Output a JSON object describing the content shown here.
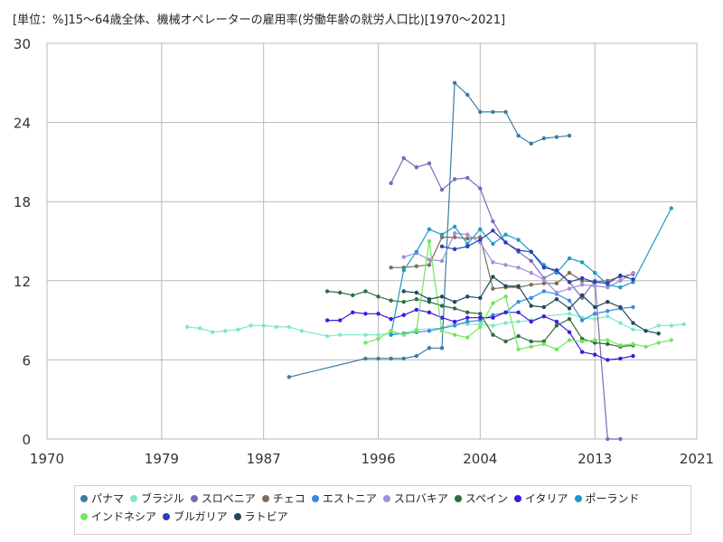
{
  "chart_data": {
    "type": "line",
    "title": "[単位：%]15～64歳全体、機械オペレーターの雇用率(労働年齢の就労人口比)[1970～2021]",
    "xlabel": "",
    "ylabel": "",
    "xlim": [
      1970,
      2021
    ],
    "ylim": [
      0,
      30
    ],
    "xticks": [
      "1970",
      "1979",
      "1987",
      "1996",
      "2004",
      "2013",
      "2021"
    ],
    "yticks": [
      "0",
      "6",
      "12",
      "18",
      "24",
      "30"
    ],
    "grid": true,
    "legend_position": "bottom",
    "series": [
      {
        "name": "パナマ",
        "color": "#3b7ca6",
        "x": [
          1989,
          1995,
          1996,
          1997,
          1998,
          1999,
          2000,
          2001,
          2002,
          2003,
          2004,
          2005,
          2006,
          2007,
          2008,
          2009,
          2010,
          2011
        ],
        "y": [
          4.7,
          6.1,
          6.1,
          6.1,
          6.1,
          6.3,
          6.9,
          6.9,
          27.0,
          26.1,
          24.8,
          24.8,
          24.8,
          23.0,
          22.4,
          22.8,
          22.9,
          23.0
        ]
      },
      {
        "name": "ブラジル",
        "color": "#7fe8c6",
        "x": [
          1981,
          1982,
          1983,
          1984,
          1985,
          1986,
          1987,
          1988,
          1989,
          1990,
          1992,
          1993,
          1995,
          1996,
          1997,
          1998,
          1999,
          2001,
          2002,
          2003,
          2004,
          2005,
          2006,
          2007,
          2008,
          2009,
          2011,
          2012,
          2013,
          2014,
          2015,
          2016,
          2017,
          2018,
          2019,
          2020
        ],
        "y": [
          8.5,
          8.4,
          8.1,
          8.2,
          8.3,
          8.6,
          8.6,
          8.5,
          8.5,
          8.2,
          7.8,
          7.9,
          7.9,
          7.9,
          8.0,
          8.0,
          8.3,
          8.4,
          8.8,
          8.7,
          8.7,
          8.6,
          8.8,
          8.9,
          9.0,
          9.3,
          9.5,
          9.2,
          9.1,
          9.3,
          8.8,
          8.3,
          8.2,
          8.6,
          8.6,
          8.7
        ]
      },
      {
        "name": "スロベニア",
        "color": "#7c69b8",
        "x": [
          1997,
          1998,
          1999,
          2000,
          2001,
          2002,
          2003,
          2004,
          2005,
          2006,
          2007,
          2008,
          2009,
          2010,
          2011,
          2012,
          2013,
          2014,
          2015
        ],
        "y": [
          19.4,
          21.3,
          20.6,
          20.9,
          18.9,
          19.7,
          19.8,
          19.0,
          16.5,
          14.9,
          14.2,
          13.5,
          12.2,
          12.7,
          11.9,
          10.7,
          12.0,
          0.0,
          0.0
        ]
      },
      {
        "name": "チェコ",
        "color": "#7e6e56",
        "x": [
          1997,
          1998,
          1999,
          2000,
          2001,
          2002,
          2003,
          2004,
          2005,
          2006,
          2007,
          2008,
          2009,
          2010,
          2011,
          2012,
          2013,
          2014,
          2015,
          2016
        ],
        "y": [
          13.0,
          13.0,
          13.1,
          13.2,
          15.3,
          15.3,
          15.2,
          15.3,
          11.4,
          11.5,
          11.5,
          11.7,
          11.8,
          11.8,
          12.6,
          12.0,
          11.9,
          12.0,
          12.3,
          12.5
        ]
      },
      {
        "name": "エストニア",
        "color": "#3a8ae0",
        "x": [
          1997,
          1998,
          1999,
          2000,
          2001,
          2002,
          2003,
          2004,
          2005,
          2006,
          2007,
          2008,
          2009,
          2010,
          2011,
          2012,
          2013,
          2014,
          2015,
          2016
        ],
        "y": [
          7.9,
          8.0,
          8.1,
          8.2,
          8.4,
          8.6,
          8.9,
          9.0,
          9.4,
          9.6,
          10.4,
          10.7,
          11.2,
          11.0,
          10.5,
          9.0,
          9.5,
          9.7,
          9.9,
          10.0
        ]
      },
      {
        "name": "スロバキア",
        "color": "#a08ee0",
        "x": [
          1998,
          1999,
          2000,
          2001,
          2002,
          2003,
          2004,
          2005,
          2006,
          2007,
          2008,
          2009,
          2010,
          2011,
          2012,
          2013,
          2014,
          2015,
          2016
        ],
        "y": [
          13.8,
          14.1,
          13.6,
          13.5,
          15.6,
          15.5,
          14.9,
          13.4,
          13.2,
          13.0,
          12.6,
          12.1,
          11.1,
          11.4,
          11.7,
          11.6,
          11.5,
          12.0,
          12.6
        ]
      },
      {
        "name": "スペイン",
        "color": "#2d6e3e",
        "x": [
          1992,
          1993,
          1994,
          1995,
          1996,
          1997,
          1998,
          1999,
          2000,
          2001,
          2002,
          2003,
          2004,
          2005,
          2006,
          2007,
          2008,
          2009,
          2010,
          2011,
          2012,
          2013,
          2014,
          2015,
          2016
        ],
        "y": [
          11.2,
          11.1,
          10.9,
          11.2,
          10.8,
          10.5,
          10.4,
          10.6,
          10.4,
          10.1,
          9.9,
          9.6,
          9.5,
          7.9,
          7.4,
          7.8,
          7.4,
          7.4,
          8.6,
          9.1,
          7.6,
          7.3,
          7.2,
          7.0,
          7.1
        ]
      },
      {
        "name": "イタリア",
        "color": "#3a1ae0",
        "x": [
          1992,
          1993,
          1994,
          1995,
          1996,
          1997,
          1998,
          1999,
          2000,
          2001,
          2002,
          2003,
          2004,
          2005,
          2006,
          2007,
          2008,
          2009,
          2010,
          2011,
          2012,
          2013,
          2014,
          2015,
          2016
        ],
        "y": [
          9.0,
          9.0,
          9.6,
          9.5,
          9.5,
          9.1,
          9.4,
          9.8,
          9.6,
          9.2,
          8.9,
          9.2,
          9.2,
          9.2,
          9.6,
          9.6,
          8.9,
          9.3,
          8.9,
          8.1,
          6.6,
          6.4,
          6.0,
          6.1,
          6.3
        ]
      },
      {
        "name": "ポーランド",
        "color": "#1d9bc4",
        "x": [
          1997,
          1998,
          1999,
          2000,
          2001,
          2002,
          2003,
          2004,
          2005,
          2006,
          2007,
          2008,
          2009,
          2010,
          2011,
          2012,
          2013,
          2014,
          2015,
          2016,
          2019
        ],
        "y": [
          7.9,
          12.8,
          14.2,
          15.9,
          15.5,
          16.1,
          14.8,
          15.9,
          14.8,
          15.5,
          15.1,
          14.2,
          13.2,
          12.6,
          13.7,
          13.4,
          12.6,
          11.7,
          11.5,
          11.9,
          17.5
        ]
      },
      {
        "name": "インドネシア",
        "color": "#6fe85c",
        "x": [
          1995,
          1996,
          1997,
          1998,
          1999,
          2000,
          2001,
          2002,
          2003,
          2004,
          2005,
          2006,
          2007,
          2008,
          2009,
          2010,
          2011,
          2012,
          2013,
          2014,
          2015,
          2016,
          2017,
          2018,
          2019
        ],
        "y": [
          7.3,
          7.6,
          8.2,
          7.9,
          8.2,
          15.0,
          8.2,
          7.9,
          7.7,
          8.5,
          10.3,
          10.8,
          6.8,
          7.0,
          7.2,
          6.8,
          7.5,
          7.4,
          7.5,
          7.5,
          7.1,
          7.2,
          7.0,
          7.3,
          7.5
        ]
      },
      {
        "name": "ブルガリア",
        "color": "#2a3fb8",
        "x": [
          2001,
          2002,
          2003,
          2004,
          2005,
          2006,
          2007,
          2008,
          2009,
          2010,
          2011,
          2012,
          2013,
          2014,
          2015,
          2016
        ],
        "y": [
          14.6,
          14.4,
          14.6,
          15.1,
          15.8,
          14.9,
          14.3,
          14.2,
          13.0,
          12.8,
          11.9,
          12.2,
          11.9,
          11.8,
          12.4,
          12.1
        ]
      },
      {
        "name": "ラトビア",
        "color": "#1f4a5c",
        "x": [
          1998,
          1999,
          2000,
          2001,
          2002,
          2003,
          2004,
          2005,
          2006,
          2007,
          2008,
          2009,
          2010,
          2011,
          2012,
          2013,
          2014,
          2015,
          2016,
          2017,
          2018
        ],
        "y": [
          11.2,
          11.1,
          10.6,
          10.8,
          10.4,
          10.8,
          10.7,
          12.3,
          11.6,
          11.6,
          10.1,
          10.0,
          10.6,
          9.9,
          10.9,
          10.0,
          10.4,
          10.0,
          8.8,
          8.2,
          8.0
        ]
      }
    ]
  }
}
